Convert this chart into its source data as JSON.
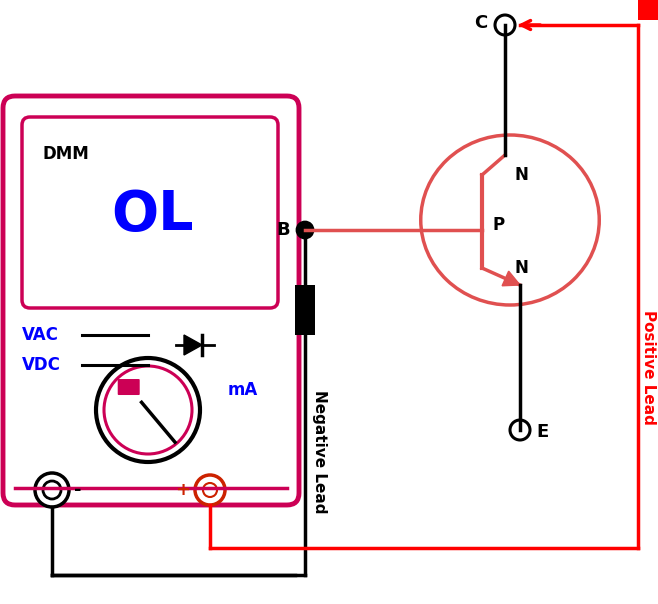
{
  "fig_width": 6.58,
  "fig_height": 6.04,
  "dpi": 100,
  "bg_color": "#ffffff",
  "magenta_color": "#cc0055",
  "red_color": "#ff0000",
  "dark_red_color": "#cc2200",
  "black_color": "#000000",
  "blue_color": "#0000ff",
  "transistor_color": "#e05050",
  "ol_text": "OL",
  "dmm_text": "DMM",
  "vac_text": "VAC",
  "vdc_text": "VDC",
  "ma_text": "mA",
  "neg_lead_text": "Negative Lead",
  "pos_lead_text": "Positive Lead",
  "c_text": "C",
  "b_text": "B",
  "e_text": "E",
  "n_text": "N",
  "p_text": "P",
  "minus_text": "-",
  "plus_text": "+"
}
